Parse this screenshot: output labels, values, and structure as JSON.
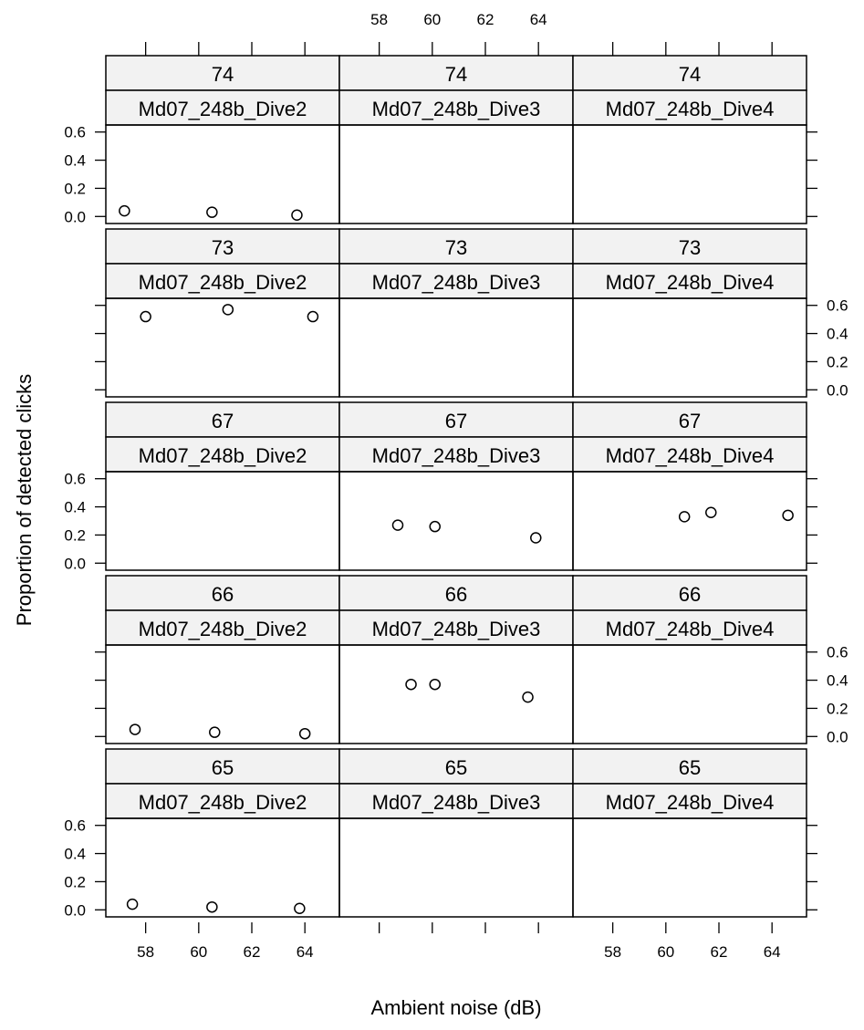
{
  "chart_data": {
    "type": "scatter",
    "xlabel": "Ambient noise (dB)",
    "ylabel": "Proportion of detected clicks",
    "xlim": [
      56.5,
      65.3
    ],
    "ylim": [
      -0.05,
      0.65
    ],
    "x_ticks": [
      58,
      60,
      62,
      64
    ],
    "y_ticks": [
      0.0,
      0.2,
      0.4,
      0.6
    ],
    "x_tick_labels": [
      "58",
      "60",
      "62",
      "64"
    ],
    "y_tick_labels": [
      "0.0",
      "0.2",
      "0.4",
      "0.6"
    ],
    "grid": false,
    "marker": "open-circle",
    "dive_labels": [
      "Md07_248b_Dive2",
      "Md07_248b_Dive3",
      "Md07_248b_Dive4"
    ],
    "rows": [
      "74",
      "73",
      "67",
      "66",
      "65"
    ],
    "panels": [
      {
        "row": 0,
        "col": 0,
        "level": "74",
        "dive": "Md07_248b_Dive2",
        "points": [
          {
            "x": 57.2,
            "y": 0.04
          },
          {
            "x": 60.5,
            "y": 0.03
          },
          {
            "x": 63.7,
            "y": 0.01
          }
        ]
      },
      {
        "row": 0,
        "col": 1,
        "level": "74",
        "dive": "Md07_248b_Dive3",
        "points": []
      },
      {
        "row": 0,
        "col": 2,
        "level": "74",
        "dive": "Md07_248b_Dive4",
        "points": []
      },
      {
        "row": 1,
        "col": 0,
        "level": "73",
        "dive": "Md07_248b_Dive2",
        "points": [
          {
            "x": 58.0,
            "y": 0.52
          },
          {
            "x": 61.1,
            "y": 0.57
          },
          {
            "x": 64.3,
            "y": 0.52
          }
        ]
      },
      {
        "row": 1,
        "col": 1,
        "level": "73",
        "dive": "Md07_248b_Dive3",
        "points": []
      },
      {
        "row": 1,
        "col": 2,
        "level": "73",
        "dive": "Md07_248b_Dive4",
        "points": []
      },
      {
        "row": 2,
        "col": 0,
        "level": "67",
        "dive": "Md07_248b_Dive2",
        "points": []
      },
      {
        "row": 2,
        "col": 1,
        "level": "67",
        "dive": "Md07_248b_Dive3",
        "points": [
          {
            "x": 58.7,
            "y": 0.27
          },
          {
            "x": 60.1,
            "y": 0.26
          },
          {
            "x": 63.9,
            "y": 0.18
          }
        ]
      },
      {
        "row": 2,
        "col": 2,
        "level": "67",
        "dive": "Md07_248b_Dive4",
        "points": [
          {
            "x": 60.7,
            "y": 0.33
          },
          {
            "x": 61.7,
            "y": 0.36
          },
          {
            "x": 64.6,
            "y": 0.34
          }
        ]
      },
      {
        "row": 3,
        "col": 0,
        "level": "66",
        "dive": "Md07_248b_Dive2",
        "points": [
          {
            "x": 57.6,
            "y": 0.05
          },
          {
            "x": 60.6,
            "y": 0.03
          },
          {
            "x": 64.0,
            "y": 0.02
          }
        ]
      },
      {
        "row": 3,
        "col": 1,
        "level": "66",
        "dive": "Md07_248b_Dive3",
        "points": [
          {
            "x": 59.2,
            "y": 0.37
          },
          {
            "x": 60.1,
            "y": 0.37
          },
          {
            "x": 63.6,
            "y": 0.28
          }
        ]
      },
      {
        "row": 3,
        "col": 2,
        "level": "66",
        "dive": "Md07_248b_Dive4",
        "points": []
      },
      {
        "row": 4,
        "col": 0,
        "level": "65",
        "dive": "Md07_248b_Dive2",
        "points": [
          {
            "x": 57.5,
            "y": 0.04
          },
          {
            "x": 60.5,
            "y": 0.02
          },
          {
            "x": 63.8,
            "y": 0.01
          }
        ]
      },
      {
        "row": 4,
        "col": 1,
        "level": "65",
        "dive": "Md07_248b_Dive3",
        "points": []
      },
      {
        "row": 4,
        "col": 2,
        "level": "65",
        "dive": "Md07_248b_Dive4",
        "points": []
      }
    ],
    "strip_fill": "#f2f2f2",
    "line_color": "#000000"
  }
}
